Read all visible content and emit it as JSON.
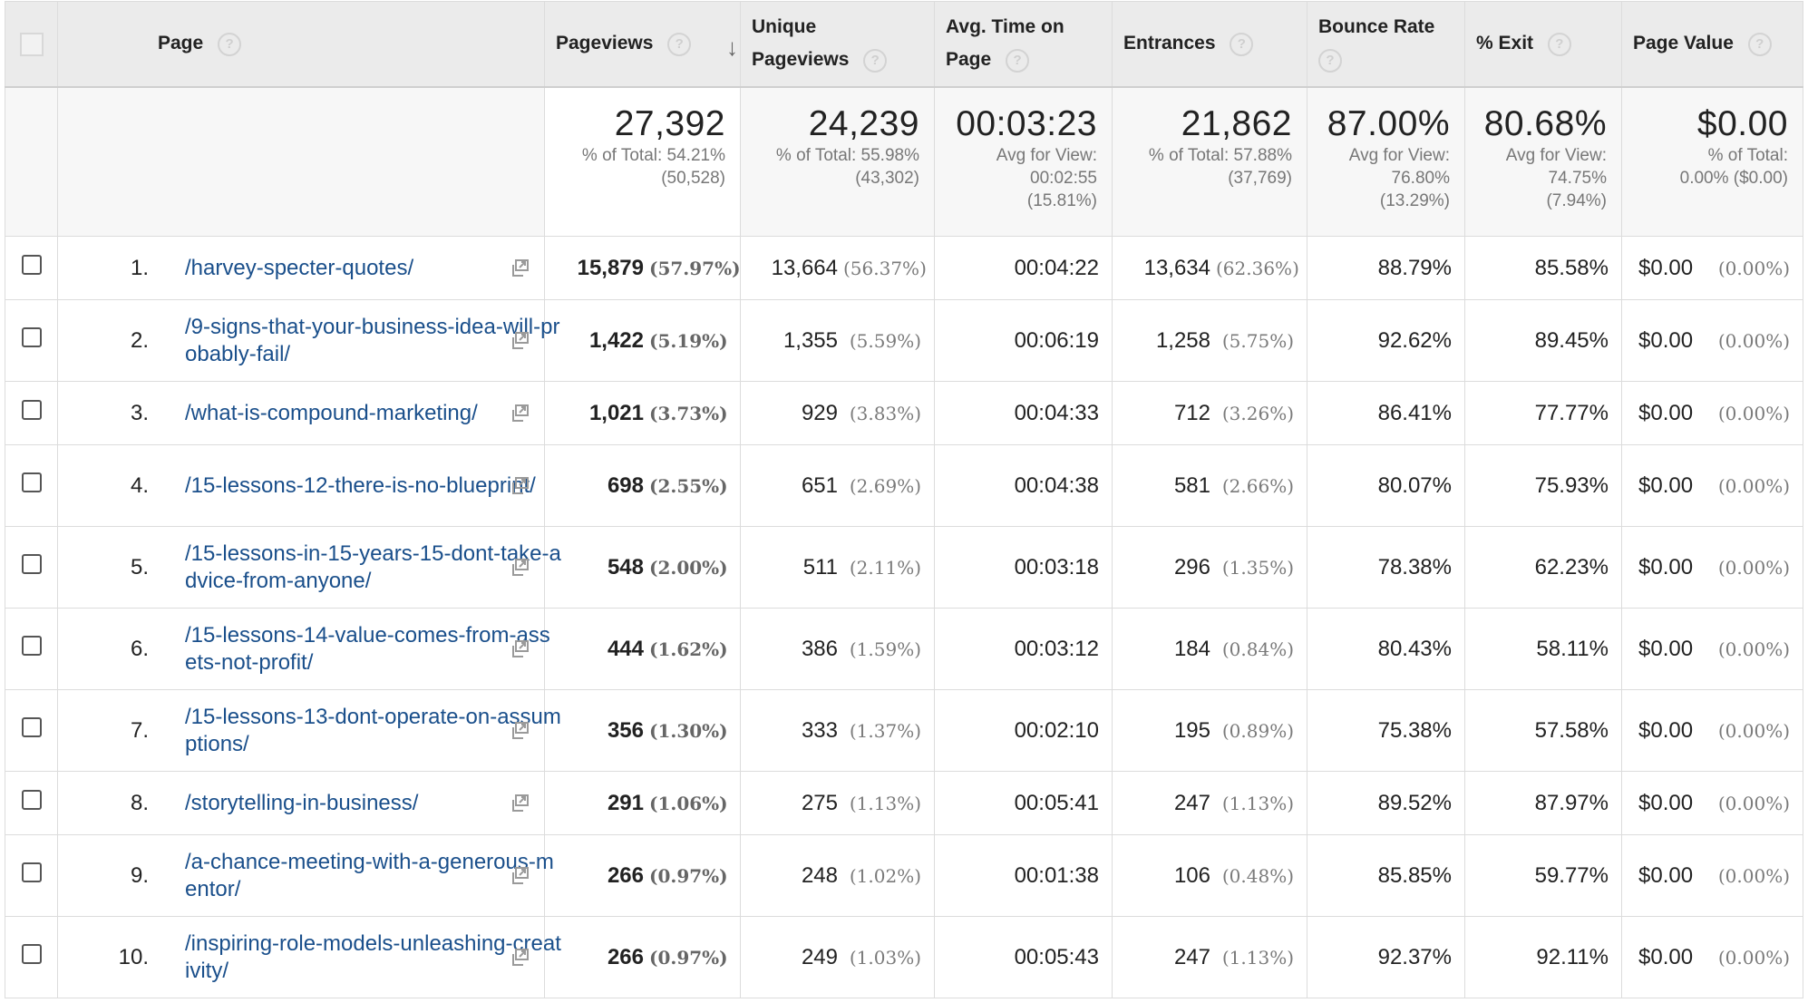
{
  "headers": {
    "page": "Page",
    "pageviews": "Pageviews",
    "unique_pageviews_l1": "Unique",
    "unique_pageviews_l2": "Pageviews",
    "avg_time_l1": "Avg. Time on",
    "avg_time_l2": "Page",
    "entrances": "Entrances",
    "bounce_rate": "Bounce Rate",
    "exit": "% Exit",
    "page_value": "Page Value",
    "help_glyph": "?",
    "sort_glyph": "↓"
  },
  "summary": {
    "pageviews": {
      "value": "27,392",
      "line1": "% of Total: 54.21%",
      "line2": "(50,528)",
      "line3": ""
    },
    "unique": {
      "value": "24,239",
      "line1": "% of Total: 55.98%",
      "line2": "(43,302)",
      "line3": ""
    },
    "avg_time": {
      "value": "00:03:23",
      "line1": "Avg for View:",
      "line2": "00:02:55",
      "line3": "(15.81%)"
    },
    "entrances": {
      "value": "21,862",
      "line1": "% of Total: 57.88%",
      "line2": "(37,769)",
      "line3": ""
    },
    "bounce": {
      "value": "87.00%",
      "line1": "Avg for View:",
      "line2": "76.80%",
      "line3": "(13.29%)"
    },
    "exit": {
      "value": "80.68%",
      "line1": "Avg for View:",
      "line2": "74.75%",
      "line3": "(7.94%)"
    },
    "page_value": {
      "value": "$0.00",
      "line1": "% of Total:",
      "line2": "0.00% ($0.00)",
      "line3": ""
    }
  },
  "rows": [
    {
      "rank": "1.",
      "page": "/harvey-specter-quotes/",
      "pv": "15,879",
      "pv_pct": "(57.97%)",
      "up": "13,664",
      "up_pct": "(56.37%)",
      "time": "00:04:22",
      "ent": "13,634",
      "ent_pct": "(62.36%)",
      "bounce": "88.79%",
      "exit": "85.58%",
      "value": "$0.00",
      "value_pct": "(0.00%)"
    },
    {
      "rank": "2.",
      "page": "/9-signs-that-your-business-idea-will-probably-fail/",
      "pv": "1,422",
      "pv_pct": "(5.19%)",
      "up": "1,355",
      "up_pct": "(5.59%)",
      "time": "00:06:19",
      "ent": "1,258",
      "ent_pct": "(5.75%)",
      "bounce": "92.62%",
      "exit": "89.45%",
      "value": "$0.00",
      "value_pct": "(0.00%)"
    },
    {
      "rank": "3.",
      "page": "/what-is-compound-marketing/",
      "pv": "1,021",
      "pv_pct": "(3.73%)",
      "up": "929",
      "up_pct": "(3.83%)",
      "time": "00:04:33",
      "ent": "712",
      "ent_pct": "(3.26%)",
      "bounce": "86.41%",
      "exit": "77.77%",
      "value": "$0.00",
      "value_pct": "(0.00%)"
    },
    {
      "rank": "4.",
      "page": "/15-lessons-12-there-is-no-blueprint/",
      "pv": "698",
      "pv_pct": "(2.55%)",
      "up": "651",
      "up_pct": "(2.69%)",
      "time": "00:04:38",
      "ent": "581",
      "ent_pct": "(2.66%)",
      "bounce": "80.07%",
      "exit": "75.93%",
      "value": "$0.00",
      "value_pct": "(0.00%)"
    },
    {
      "rank": "5.",
      "page": "/15-lessons-in-15-years-15-dont-take-advice-from-anyone/",
      "pv": "548",
      "pv_pct": "(2.00%)",
      "up": "511",
      "up_pct": "(2.11%)",
      "time": "00:03:18",
      "ent": "296",
      "ent_pct": "(1.35%)",
      "bounce": "78.38%",
      "exit": "62.23%",
      "value": "$0.00",
      "value_pct": "(0.00%)"
    },
    {
      "rank": "6.",
      "page": "/15-lessons-14-value-comes-from-assets-not-profit/",
      "pv": "444",
      "pv_pct": "(1.62%)",
      "up": "386",
      "up_pct": "(1.59%)",
      "time": "00:03:12",
      "ent": "184",
      "ent_pct": "(0.84%)",
      "bounce": "80.43%",
      "exit": "58.11%",
      "value": "$0.00",
      "value_pct": "(0.00%)"
    },
    {
      "rank": "7.",
      "page": "/15-lessons-13-dont-operate-on-assumptions/",
      "pv": "356",
      "pv_pct": "(1.30%)",
      "up": "333",
      "up_pct": "(1.37%)",
      "time": "00:02:10",
      "ent": "195",
      "ent_pct": "(0.89%)",
      "bounce": "75.38%",
      "exit": "57.58%",
      "value": "$0.00",
      "value_pct": "(0.00%)"
    },
    {
      "rank": "8.",
      "page": "/storytelling-in-business/",
      "pv": "291",
      "pv_pct": "(1.06%)",
      "up": "275",
      "up_pct": "(1.13%)",
      "time": "00:05:41",
      "ent": "247",
      "ent_pct": "(1.13%)",
      "bounce": "89.52%",
      "exit": "87.97%",
      "value": "$0.00",
      "value_pct": "(0.00%)"
    },
    {
      "rank": "9.",
      "page": "/a-chance-meeting-with-a-generous-mentor/",
      "pv": "266",
      "pv_pct": "(0.97%)",
      "up": "248",
      "up_pct": "(1.02%)",
      "time": "00:01:38",
      "ent": "106",
      "ent_pct": "(0.48%)",
      "bounce": "85.85%",
      "exit": "59.77%",
      "value": "$0.00",
      "value_pct": "(0.00%)"
    },
    {
      "rank": "10.",
      "page": "/inspiring-role-models-unleashing-creativity/",
      "pv": "266",
      "pv_pct": "(0.97%)",
      "up": "249",
      "up_pct": "(1.03%)",
      "time": "00:05:43",
      "ent": "247",
      "ent_pct": "(1.13%)",
      "bounce": "92.37%",
      "exit": "92.11%",
      "value": "$0.00",
      "value_pct": "(0.00%)"
    }
  ]
}
